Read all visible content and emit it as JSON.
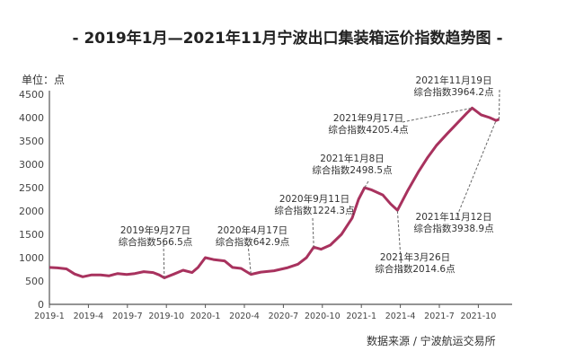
{
  "chart_data": {
    "type": "line",
    "title": "- 2019年1月—2021年11月宁波出口集装箱运价指数趋势图 -",
    "ylabel": "单位：点",
    "source": "数据来源 / 宁波航运交易所",
    "ylim": [
      0,
      4500
    ],
    "yticks": [
      "0",
      "500",
      "1000",
      "1500",
      "2000",
      "2500",
      "3000",
      "3500",
      "4000",
      "4500"
    ],
    "xticks": [
      "2019-1",
      "2019-4",
      "2019-7",
      "2019-10",
      "2020-1",
      "2020-4",
      "2020-7",
      "2020-10",
      "2021-1",
      "2021-4",
      "2021-7",
      "2021-10"
    ],
    "grid": false,
    "line_color": "#a8325e",
    "points": [
      [
        "2019-01-01",
        790
      ],
      [
        "2019-01-20",
        780
      ],
      [
        "2019-02-10",
        760
      ],
      [
        "2019-03-01",
        650
      ],
      [
        "2019-03-20",
        590
      ],
      [
        "2019-04-10",
        630
      ],
      [
        "2019-05-01",
        630
      ],
      [
        "2019-05-20",
        610
      ],
      [
        "2019-06-10",
        660
      ],
      [
        "2019-07-01",
        640
      ],
      [
        "2019-07-20",
        660
      ],
      [
        "2019-08-10",
        700
      ],
      [
        "2019-09-01",
        680
      ],
      [
        "2019-09-15",
        630
      ],
      [
        "2019-09-27",
        566.5
      ],
      [
        "2019-10-20",
        650
      ],
      [
        "2019-11-10",
        730
      ],
      [
        "2019-12-01",
        680
      ],
      [
        "2019-12-15",
        790
      ],
      [
        "2020-01-01",
        1000
      ],
      [
        "2020-01-20",
        960
      ],
      [
        "2020-02-15",
        930
      ],
      [
        "2020-03-05",
        790
      ],
      [
        "2020-03-25",
        770
      ],
      [
        "2020-04-17",
        642.9
      ],
      [
        "2020-05-10",
        690
      ],
      [
        "2020-06-10",
        720
      ],
      [
        "2020-07-10",
        780
      ],
      [
        "2020-08-05",
        860
      ],
      [
        "2020-08-25",
        1000
      ],
      [
        "2020-09-11",
        1224.3
      ],
      [
        "2020-09-28",
        1180
      ],
      [
        "2020-10-20",
        1270
      ],
      [
        "2020-11-15",
        1500
      ],
      [
        "2020-12-10",
        1850
      ],
      [
        "2020-12-25",
        2250
      ],
      [
        "2021-01-08",
        2498.5
      ],
      [
        "2021-01-25",
        2450
      ],
      [
        "2021-02-20",
        2340
      ],
      [
        "2021-03-10",
        2150
      ],
      [
        "2021-03-26",
        2014.6
      ],
      [
        "2021-04-20",
        2450
      ],
      [
        "2021-05-15",
        2850
      ],
      [
        "2021-06-05",
        3150
      ],
      [
        "2021-06-25",
        3400
      ],
      [
        "2021-07-20",
        3650
      ],
      [
        "2021-08-15",
        3900
      ],
      [
        "2021-09-05",
        4100
      ],
      [
        "2021-09-17",
        4205.4
      ],
      [
        "2021-10-08",
        4060
      ],
      [
        "2021-10-28",
        4000
      ],
      [
        "2021-11-12",
        3938.9
      ],
      [
        "2021-11-19",
        3964.2
      ]
    ],
    "annotations": [
      {
        "date": "2019-09-27",
        "value": 566.5,
        "line1": "2019年9月27日",
        "line2": "综合指数566.5点"
      },
      {
        "date": "2020-04-17",
        "value": 642.9,
        "line1": "2020年4月17日",
        "line2": "综合指数642.9点"
      },
      {
        "date": "2020-09-11",
        "value": 1224.3,
        "line1": "2020年9月11日",
        "line2": "综合指数1224.3点"
      },
      {
        "date": "2021-01-08",
        "value": 2498.5,
        "line1": "2021年1月8日",
        "line2": "综合指数2498.5点"
      },
      {
        "date": "2021-03-26",
        "value": 2014.6,
        "line1": "2021年3月26日",
        "line2": "综合指数2014.6点"
      },
      {
        "date": "2021-09-17",
        "value": 4205.4,
        "line1": "2021年9月17日",
        "line2": "综合指数4205.4点"
      },
      {
        "date": "2021-11-12",
        "value": 3938.9,
        "line1": "2021年11月12日",
        "line2": "综合指数3938.9点"
      },
      {
        "date": "2021-11-19",
        "value": 3964.2,
        "line1": "2021年11月19日",
        "line2": "综合指数3964.2点"
      }
    ]
  }
}
